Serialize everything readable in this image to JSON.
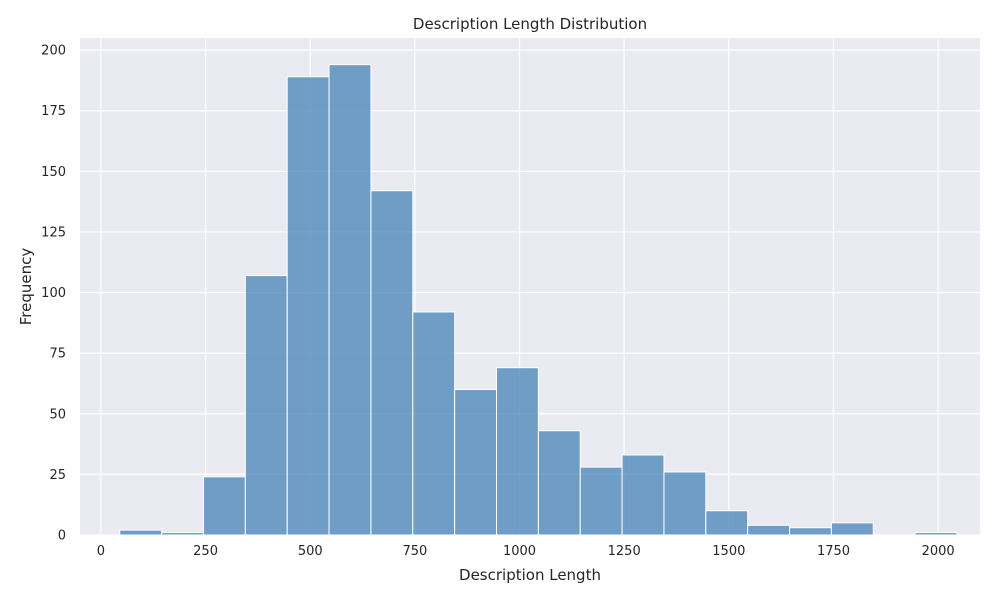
{
  "chart_data": {
    "type": "bar",
    "subtype": "histogram",
    "title": "Description Length Distribution",
    "xlabel": "Description Length",
    "ylabel": "Frequency",
    "xlim": [
      -50,
      2100
    ],
    "ylim": [
      0,
      205
    ],
    "xticks": [
      0,
      250,
      500,
      750,
      1000,
      1250,
      1500,
      1750,
      2000
    ],
    "yticks": [
      0,
      25,
      50,
      75,
      100,
      125,
      150,
      175,
      200
    ],
    "grid": true,
    "bar_color": "#4c86b8",
    "background_color": "#eaeaf2",
    "bins": [
      {
        "start": 45,
        "end": 145,
        "count": 2
      },
      {
        "start": 145,
        "end": 245,
        "count": 1
      },
      {
        "start": 245,
        "end": 345,
        "count": 24
      },
      {
        "start": 345,
        "end": 445,
        "count": 107
      },
      {
        "start": 445,
        "end": 545,
        "count": 189
      },
      {
        "start": 545,
        "end": 645,
        "count": 194
      },
      {
        "start": 645,
        "end": 745,
        "count": 142
      },
      {
        "start": 745,
        "end": 845,
        "count": 92
      },
      {
        "start": 845,
        "end": 945,
        "count": 60
      },
      {
        "start": 945,
        "end": 1045,
        "count": 69
      },
      {
        "start": 1045,
        "end": 1145,
        "count": 43
      },
      {
        "start": 1145,
        "end": 1245,
        "count": 28
      },
      {
        "start": 1245,
        "end": 1345,
        "count": 33
      },
      {
        "start": 1345,
        "end": 1445,
        "count": 26
      },
      {
        "start": 1445,
        "end": 1545,
        "count": 10
      },
      {
        "start": 1545,
        "end": 1645,
        "count": 4
      },
      {
        "start": 1645,
        "end": 1745,
        "count": 3
      },
      {
        "start": 1745,
        "end": 1845,
        "count": 5
      },
      {
        "start": 1845,
        "end": 1945,
        "count": 0
      },
      {
        "start": 1945,
        "end": 2045,
        "count": 1
      }
    ]
  }
}
